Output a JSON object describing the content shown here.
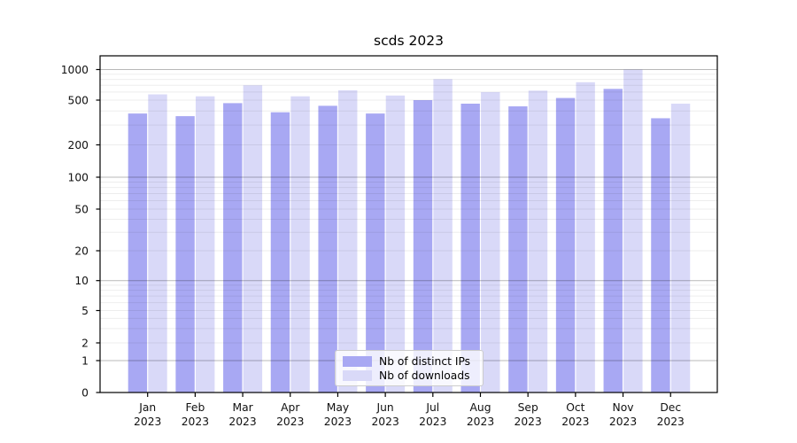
{
  "chart_data": {
    "type": "bar",
    "title": "scds 2023",
    "categories": [
      "Jan",
      "Feb",
      "Mar",
      "Apr",
      "May",
      "Jun",
      "Jul",
      "Aug",
      "Sep",
      "Oct",
      "Nov",
      "Dec"
    ],
    "category_year_line": "2023",
    "series": [
      {
        "name": "Nb of distinct IPs",
        "color": "#a8a8f3",
        "values": [
          380,
          360,
          470,
          390,
          445,
          380,
          500,
          465,
          440,
          525,
          645,
          345
        ]
      },
      {
        "name": "Nb of downloads",
        "color": "#d9d9f8",
        "values": [
          570,
          545,
          700,
          545,
          625,
          555,
          805,
          600,
          620,
          750,
          1000,
          465
        ]
      }
    ],
    "xlabel": "",
    "ylabel": "",
    "yscale": "symlog",
    "ylim": [
      0,
      1000
    ],
    "y_ticks": [
      0,
      1,
      2,
      5,
      10,
      20,
      50,
      100,
      200,
      500,
      1000
    ],
    "grid": true,
    "legend_position": "lower center",
    "colors": {
      "major_grid": "rgba(0,0,0,0.28)",
      "minor_grid": "rgba(0,0,0,0.07)",
      "axis": "#000000",
      "tick_label": "#111111"
    }
  }
}
